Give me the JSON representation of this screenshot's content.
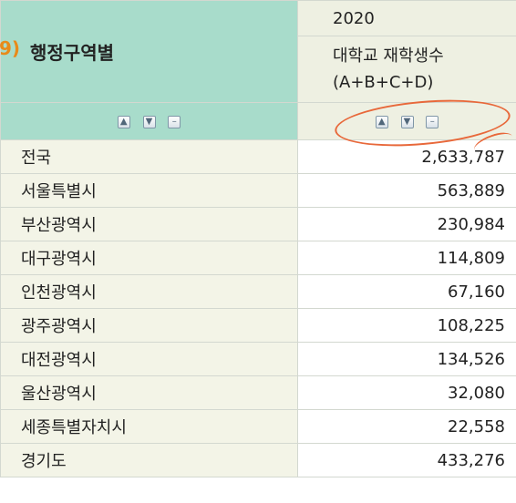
{
  "header": {
    "row_header_label": "행정구역별",
    "row_header_mark": "9)",
    "year": "2020",
    "item_line1": "대학교 재학생수",
    "item_line2": "(A+B+C+D)"
  },
  "controls": {
    "sort_asc_icon": "chevron-up-icon",
    "sort_desc_icon": "chevron-down-icon",
    "collapse_icon": "minus-icon"
  },
  "rows": [
    {
      "name": "전국",
      "value": "2,633,787"
    },
    {
      "name": "서울특별시",
      "value": "563,889"
    },
    {
      "name": "부산광역시",
      "value": "230,984"
    },
    {
      "name": "대구광역시",
      "value": "114,809"
    },
    {
      "name": "인천광역시",
      "value": "67,160"
    },
    {
      "name": "광주광역시",
      "value": "108,225"
    },
    {
      "name": "대전광역시",
      "value": "134,526"
    },
    {
      "name": "울산광역시",
      "value": "32,080"
    },
    {
      "name": "세종특별자치시",
      "value": "22,558"
    },
    {
      "name": "경기도",
      "value": "433,276"
    }
  ],
  "colors": {
    "header_green": "#a8dccb",
    "header_beige": "#eef0e2",
    "annotation": "#e8683a"
  }
}
